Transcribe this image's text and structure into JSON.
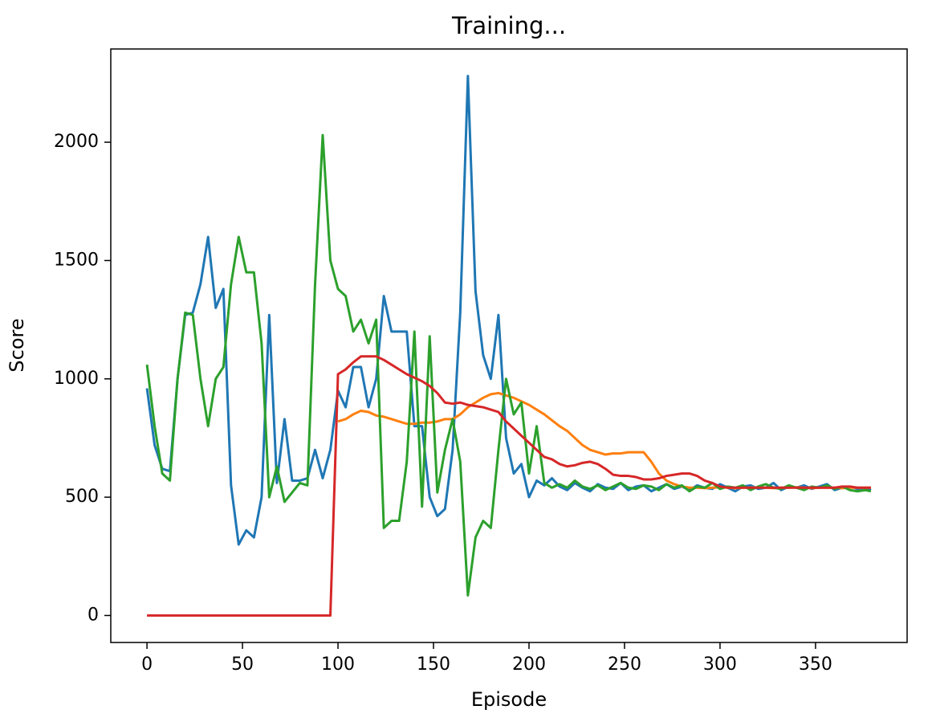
{
  "chart_data": {
    "type": "line",
    "title": "Training...",
    "x_label": "Episode",
    "y_label": "Score",
    "x": [
      0,
      4,
      8,
      12,
      16,
      20,
      24,
      28,
      32,
      36,
      40,
      44,
      48,
      52,
      56,
      60,
      64,
      68,
      72,
      76,
      80,
      84,
      88,
      92,
      96,
      100,
      104,
      108,
      112,
      116,
      120,
      124,
      128,
      132,
      136,
      140,
      144,
      148,
      152,
      156,
      160,
      164,
      168,
      172,
      176,
      180,
      184,
      188,
      192,
      196,
      200,
      204,
      208,
      212,
      216,
      220,
      224,
      228,
      232,
      236,
      240,
      244,
      248,
      252,
      256,
      260,
      264,
      268,
      272,
      276,
      280,
      284,
      288,
      292,
      296,
      300,
      304,
      308,
      312,
      316,
      320,
      324,
      328,
      332,
      336,
      340,
      344,
      348,
      352,
      356,
      360,
      364,
      368,
      372,
      376,
      379
    ],
    "series": [
      {
        "color": "#1f77b4",
        "values": [
          960,
          720,
          620,
          610,
          1000,
          1270,
          1280,
          1400,
          1600,
          1300,
          1380,
          550,
          300,
          360,
          330,
          500,
          1270,
          560,
          830,
          570,
          570,
          580,
          700,
          580,
          700,
          950,
          880,
          1050,
          1050,
          880,
          1000,
          1350,
          1200,
          1200,
          1200,
          800,
          800,
          500,
          420,
          450,
          700,
          1280,
          2280,
          1370,
          1100,
          1000,
          1270,
          750,
          600,
          640,
          500,
          570,
          550,
          580,
          545,
          530,
          560,
          540,
          525,
          555,
          540,
          535,
          560,
          530,
          545,
          550,
          525,
          540,
          555,
          535,
          545,
          530,
          550,
          540,
          535,
          555,
          540,
          525,
          545,
          550,
          535,
          540,
          560,
          530,
          545,
          540,
          550,
          535,
          545,
          555,
          530,
          540,
          545,
          535,
          540,
          530
        ]
      },
      {
        "color": "#ff7f0e",
        "values": [
          null,
          null,
          null,
          null,
          null,
          null,
          null,
          null,
          null,
          null,
          null,
          null,
          null,
          null,
          null,
          null,
          null,
          null,
          null,
          null,
          null,
          null,
          null,
          null,
          null,
          820,
          830,
          850,
          865,
          860,
          845,
          840,
          830,
          820,
          810,
          810,
          815,
          815,
          820,
          830,
          830,
          850,
          880,
          900,
          920,
          935,
          940,
          930,
          920,
          905,
          890,
          870,
          850,
          825,
          800,
          780,
          750,
          720,
          700,
          690,
          680,
          685,
          685,
          690,
          690,
          690,
          650,
          600,
          570,
          555,
          545,
          540,
          540,
          538,
          540,
          542,
          540,
          538,
          540,
          540,
          542,
          540,
          538,
          540,
          540,
          542,
          540,
          538,
          540,
          540,
          540,
          538,
          540,
          540,
          540,
          540
        ]
      },
      {
        "color": "#2ca02c",
        "values": [
          1060,
          800,
          600,
          570,
          1000,
          1280,
          1270,
          1000,
          800,
          1000,
          1050,
          1400,
          1600,
          1450,
          1450,
          1150,
          500,
          630,
          480,
          520,
          560,
          550,
          1400,
          2030,
          1500,
          1380,
          1350,
          1200,
          1250,
          1150,
          1250,
          370,
          400,
          400,
          650,
          1200,
          460,
          1180,
          520,
          700,
          830,
          650,
          85,
          330,
          400,
          370,
          700,
          1000,
          850,
          900,
          600,
          800,
          560,
          540,
          555,
          540,
          570,
          545,
          535,
          550,
          530,
          545,
          560,
          540,
          535,
          550,
          545,
          530,
          555,
          540,
          550,
          525,
          545,
          540,
          560,
          535,
          545,
          540,
          550,
          530,
          545,
          555,
          540,
          535,
          550,
          540,
          530,
          545,
          540,
          550,
          535,
          545,
          530,
          525,
          530,
          525
        ]
      },
      {
        "color": "#d62728",
        "values": [
          0,
          0,
          0,
          0,
          0,
          0,
          0,
          0,
          0,
          0,
          0,
          0,
          0,
          0,
          0,
          0,
          0,
          0,
          0,
          0,
          0,
          0,
          0,
          0,
          0,
          1020,
          1040,
          1070,
          1095,
          1095,
          1095,
          1080,
          1060,
          1040,
          1020,
          1005,
          990,
          970,
          940,
          900,
          895,
          900,
          890,
          885,
          880,
          870,
          860,
          820,
          790,
          760,
          730,
          700,
          670,
          660,
          640,
          630,
          635,
          645,
          650,
          640,
          620,
          595,
          590,
          590,
          585,
          575,
          575,
          580,
          590,
          595,
          600,
          600,
          590,
          570,
          560,
          545,
          540,
          540,
          540,
          540,
          540,
          540,
          540,
          540,
          540,
          540,
          540,
          540,
          540,
          540,
          540,
          545,
          545,
          540,
          540,
          540
        ]
      }
    ],
    "xlim": [
      -18.95,
      397.95
    ],
    "ylim": [
      -114,
      2394
    ],
    "xticks": [
      0,
      50,
      100,
      150,
      200,
      250,
      300,
      350
    ],
    "yticks": [
      0,
      500,
      1000,
      1500,
      2000
    ]
  }
}
